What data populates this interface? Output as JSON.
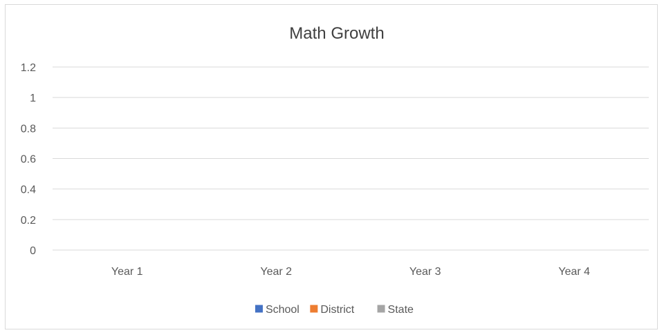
{
  "chart_data": {
    "type": "bar",
    "title": "Math Growth",
    "categories": [
      "Year 1",
      "Year 2",
      "Year 3",
      "Year 4"
    ],
    "series": [
      {
        "name": "School",
        "color": "#4472c4",
        "values": [
          0,
          0,
          0,
          0
        ]
      },
      {
        "name": "District",
        "color": "#ed7d31",
        "values": [
          0,
          0,
          0,
          0
        ]
      },
      {
        "name": "State",
        "color": "#a5a5a5",
        "values": [
          0,
          0,
          0,
          0
        ]
      }
    ],
    "y_ticks": [
      "0",
      "0.2",
      "0.4",
      "0.6",
      "0.8",
      "1",
      "1.2"
    ],
    "ylim": [
      0,
      1.2
    ],
    "grid": true,
    "legend_position": "bottom",
    "gridline_color": "#d9d9d9"
  }
}
